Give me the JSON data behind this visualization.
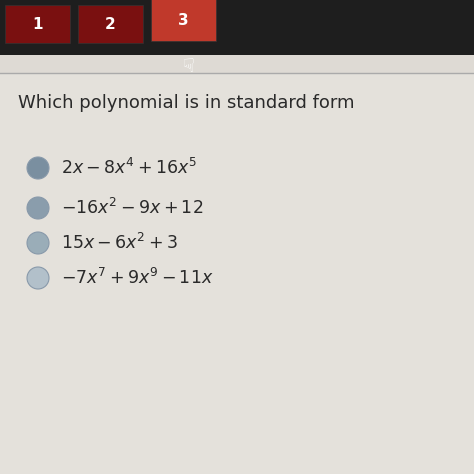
{
  "bg_top": "#1e1e1e",
  "bg_main": "#dedad4",
  "tab_labels": [
    "1",
    "2",
    "3"
  ],
  "tab_active": 2,
  "question": "Which polynomial is in standard form",
  "question_fontsize": 13.5,
  "options_latex": [
    "$2x-8x^4+16x^5$",
    "$-16x^2-9x+12$",
    "$15x-6x^2+3$",
    "$-7x^7+9x^9-11x$"
  ],
  "text_color": "#2a2a2a",
  "radio_colors": [
    "#8899aa",
    "#8899aa",
    "#9aabb8",
    "#b0bec5"
  ],
  "tab_colors": [
    "#7a1010",
    "#7a1010",
    "#c0392b"
  ],
  "tab_active_color": "#c0392b",
  "tab_inactive_color": "#7a1010",
  "top_bar_color": "#1e1e1e",
  "divider_color": "#aaaaaa"
}
